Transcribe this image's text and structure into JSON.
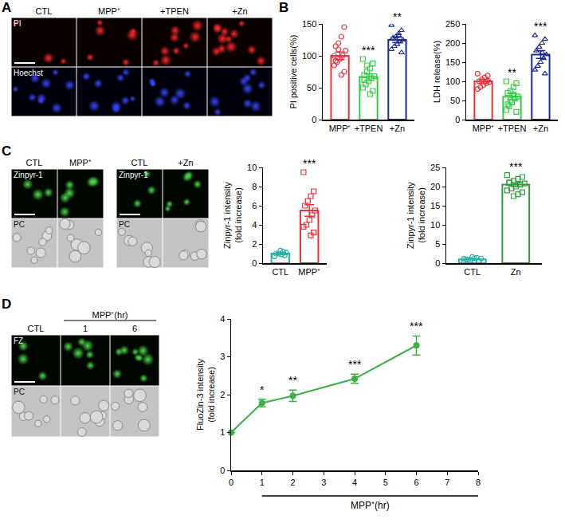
{
  "panel_letters": [
    "A",
    "B",
    "C",
    "D"
  ],
  "image_panels": [
    {
      "columns": [
        "CTL",
        "MPP⁺",
        "+TPEN",
        "+Zn"
      ],
      "rows": [
        "PI",
        "Hoechst"
      ]
    },
    {
      "columns": [
        "CTL",
        "MPP⁺"
      ],
      "rows": [
        "Zinpyr-1",
        "PC"
      ]
    },
    {
      "columns": [
        "CTL",
        "+Zn"
      ],
      "rows": [
        "Zinpyr-1",
        "PC"
      ]
    },
    {
      "columns": [
        "CTL",
        "1",
        "6"
      ],
      "group_header": "MPP⁺(hr)",
      "rows": [
        "FZ",
        "PC"
      ]
    }
  ],
  "chart_data": [
    {
      "type": "bar",
      "y_title": "PI positive cells(%)",
      "categories": [
        "MPP⁺",
        "+TPEN",
        "+Zn"
      ],
      "values": [
        100,
        67,
        125
      ],
      "errors": [
        6,
        5,
        4
      ],
      "points": [
        [
          100,
          145,
          130,
          120,
          115,
          108,
          100,
          95,
          90,
          85,
          75,
          70,
          110,
          92
        ],
        [
          95,
          88,
          80,
          75,
          70,
          68,
          65,
          60,
          55,
          50,
          45,
          40,
          85,
          62
        ],
        [
          148,
          140,
          135,
          130,
          128,
          125,
          122,
          118,
          115,
          110,
          105,
          132
        ]
      ],
      "colors": [
        "#e8333a",
        "#33cc44",
        "#1f2a9a"
      ],
      "significance": [
        null,
        "***",
        "**"
      ],
      "ylim": [
        0,
        150
      ],
      "yticks": [
        0,
        50,
        100,
        150
      ],
      "grid": false
    },
    {
      "type": "bar",
      "y_title": "LDH release(%)",
      "categories": [
        "MPP⁺",
        "+TPEN",
        "+Zn"
      ],
      "values": [
        100,
        60,
        170
      ],
      "errors": [
        5,
        8,
        10
      ],
      "points": [
        [
          120,
          115,
          110,
          105,
          100,
          98,
          95,
          90,
          85,
          80,
          102
        ],
        [
          100,
          95,
          85,
          75,
          70,
          60,
          55,
          45,
          35,
          25,
          20,
          65,
          50,
          40
        ],
        [
          220,
          210,
          200,
          190,
          180,
          170,
          160,
          150,
          140,
          130,
          120,
          175
        ]
      ],
      "colors": [
        "#e8333a",
        "#33cc44",
        "#1f2a9a"
      ],
      "significance": [
        null,
        "**",
        "***"
      ],
      "ylim": [
        0,
        250
      ],
      "yticks": [
        0,
        50,
        100,
        150,
        200,
        250
      ],
      "grid": false
    },
    {
      "type": "bar",
      "y_title": "Zinpyr-1 intensity (fold increase)",
      "categories": [
        "CTL",
        "MPP⁺"
      ],
      "values": [
        1,
        5.5
      ],
      "errors": [
        0.1,
        0.6
      ],
      "points": [
        [
          0.7,
          0.8,
          0.9,
          1.0,
          1.0,
          1.1,
          1.2,
          1.3
        ],
        [
          9.5,
          7.5,
          7,
          6.5,
          6,
          5.5,
          5,
          4.5,
          4,
          3.8,
          3.2,
          2.9
        ]
      ],
      "colors": [
        "#2bb0a8",
        "#e8333a"
      ],
      "significance": [
        null,
        "***"
      ],
      "ylim": [
        0,
        10
      ],
      "yticks": [
        0,
        2,
        4,
        6,
        8,
        10
      ],
      "grid": false
    },
    {
      "type": "bar",
      "y_title": "Zinpyr-1 intensity (fold increase)",
      "categories": [
        "CTL",
        "Zn"
      ],
      "values": [
        1,
        20.5
      ],
      "errors": [
        0.1,
        0.5
      ],
      "points": [
        [
          0.3,
          0.5,
          0.7,
          0.8,
          1.0,
          1.2,
          1.4,
          1.6,
          0.9,
          1.1,
          0.6,
          1.3
        ],
        [
          23,
          22.5,
          22,
          21.5,
          21,
          20.8,
          20.5,
          20,
          19.5,
          19,
          18.5,
          18,
          17.5,
          21
        ]
      ],
      "colors": [
        "#2bb0a8",
        "#2e9e3e"
      ],
      "significance": [
        null,
        "***"
      ],
      "ylim": [
        0,
        25
      ],
      "yticks": [
        0,
        5,
        10,
        15,
        20,
        25
      ],
      "grid": false
    },
    {
      "type": "line",
      "y_title": "FluoZin-3 intensity (fold increase)",
      "x_title": "MPP⁺(hr)",
      "x": [
        0,
        1,
        2,
        4,
        6
      ],
      "values": [
        1,
        1.78,
        1.97,
        2.42,
        3.3
      ],
      "errors": [
        0,
        0.1,
        0.15,
        0.12,
        0.25
      ],
      "significance": [
        null,
        "*",
        "**",
        "***",
        "***"
      ],
      "color": "#3cb043",
      "marker": "circle",
      "xlim": [
        0,
        8
      ],
      "xticks": [
        0,
        1,
        2,
        3,
        4,
        5,
        6,
        7,
        8
      ],
      "ylim": [
        0,
        4
      ],
      "yticks": [
        0,
        1,
        2,
        3,
        4
      ],
      "grid": false
    }
  ]
}
